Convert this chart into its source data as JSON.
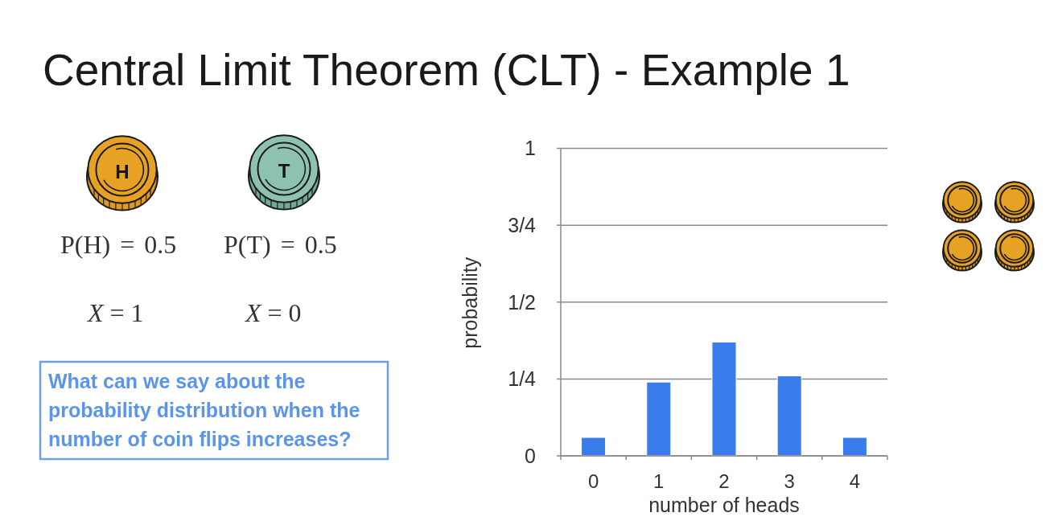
{
  "chart_data": {
    "type": "bar",
    "title": "Central Limit Theorem (CLT) - Example 1",
    "xlabel": "number of heads",
    "ylabel": "probability",
    "categories": [
      "0",
      "1",
      "2",
      "3",
      "4"
    ],
    "values": [
      0.06,
      0.24,
      0.37,
      0.26,
      0.06
    ],
    "color": "#3b7cec",
    "ylim": [
      0,
      1
    ],
    "yticks": [
      0,
      {
        "value": 0.25,
        "label": "1/4"
      },
      {
        "value": 0.5,
        "label": "1/2"
      },
      {
        "value": 0.75,
        "label": "3/4"
      },
      1
    ],
    "grid": "y",
    "annotations": [
      "H",
      "T",
      "P(H) = 0.5",
      "P(T) = 0.5",
      "X = 1",
      "X = 0",
      "What can we say about the probability distribution when the number of coin flips increases?"
    ]
  }
}
